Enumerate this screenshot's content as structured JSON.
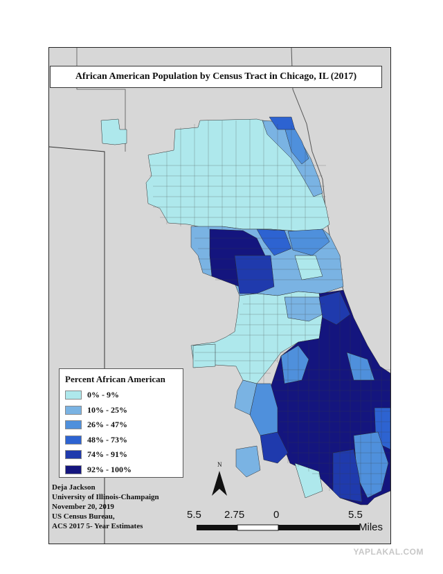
{
  "map": {
    "title": "African American Population by Census Tract in Chicago, IL (2017)",
    "legend_title": "Percent African American",
    "legend": [
      {
        "label": "0% - 9%",
        "color": "#aee8ec"
      },
      {
        "label": "10% - 25%",
        "color": "#7ab3e3"
      },
      {
        "label": "26% - 47%",
        "color": "#4f90dc"
      },
      {
        "label": "48% - 73%",
        "color": "#2d63d1"
      },
      {
        "label": "74% - 91%",
        "color": "#1f3aad"
      },
      {
        "label": "92% - 100%",
        "color": "#14157e"
      }
    ],
    "colors": {
      "background": "#d7d7d7",
      "boundary": "#3a3a3a"
    }
  },
  "credits": [
    "Deja Jackson",
    "University of Illinois-Champaign",
    "November 20, 2019",
    "US Census Bureau,",
    "ACS 2017 5- Year Estimates"
  ],
  "north_label": "N",
  "scale": {
    "labels": [
      "5.5",
      "2.75",
      "0",
      "5.5"
    ],
    "units": "Miles"
  },
  "watermark": "YAPLAKAL.COM"
}
